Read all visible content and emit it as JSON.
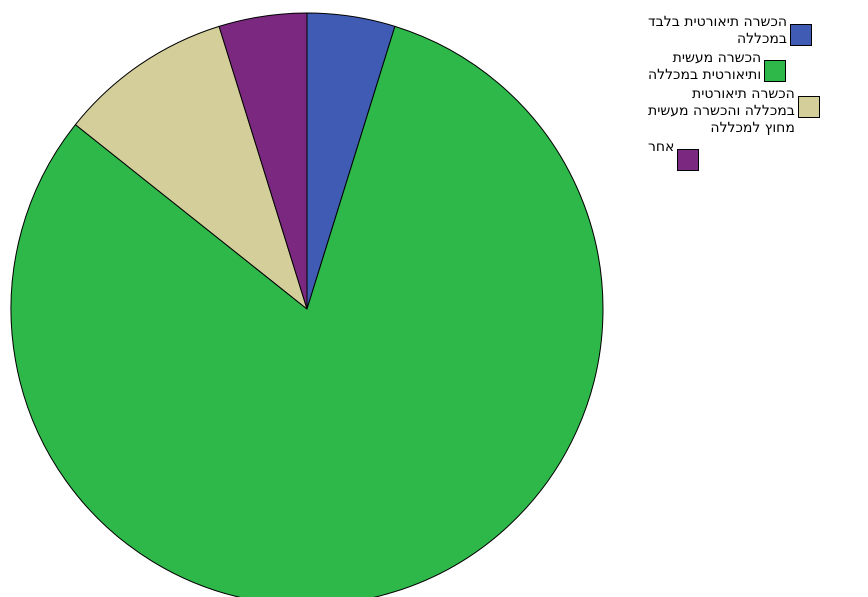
{
  "chart_data": {
    "type": "pie",
    "start_angle_deg": 0,
    "direction": "clockwise",
    "slices": [
      {
        "label": "הכשרה תיאורטית בלבד\nבמכללה",
        "value": 4.8,
        "color": "#3f5bb3"
      },
      {
        "label": "הכשרה מעשית\nותיאורטית במכללה",
        "value": 80.9,
        "color": "#2eb84a"
      },
      {
        "label": "הכשרה תיאורטית\nבמכללה והכשרה מעשית\nמחוץ למכללה",
        "value": 9.5,
        "color": "#d4cf9a"
      },
      {
        "label": "אחר",
        "value": 4.8,
        "color": "#7b2880"
      }
    ],
    "legend_position": "right"
  }
}
